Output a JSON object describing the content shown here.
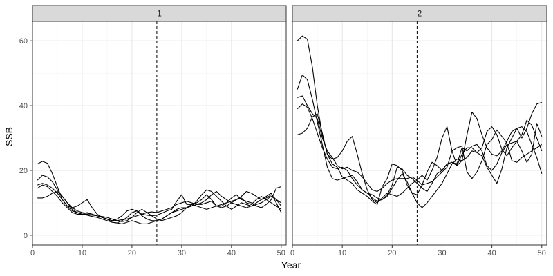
{
  "chart_data": {
    "type": "line",
    "facet_strip_labels": [
      "1",
      "2"
    ],
    "xlabel": "Year",
    "ylabel": "SSB",
    "xlim": [
      0,
      51
    ],
    "ylim": [
      -3,
      66
    ],
    "x_ticks": [
      0,
      10,
      20,
      30,
      40,
      50
    ],
    "y_ticks": [
      0,
      20,
      40,
      60
    ],
    "reference_line": {
      "x": 25,
      "style": "dashed"
    },
    "grid": true,
    "x": [
      1,
      2,
      3,
      4,
      5,
      6,
      7,
      8,
      9,
      10,
      11,
      12,
      13,
      14,
      15,
      16,
      17,
      18,
      19,
      20,
      21,
      22,
      23,
      24,
      25,
      26,
      27,
      28,
      29,
      30,
      31,
      32,
      33,
      34,
      35,
      36,
      37,
      38,
      39,
      40,
      41,
      42,
      43,
      44,
      45,
      46,
      47,
      48,
      49,
      50
    ],
    "panels": [
      {
        "panel": "1",
        "series": [
          {
            "values": [
              22,
              22.8,
              22.2,
              19,
              15,
              11,
              9,
              8.5,
              9,
              10,
              11,
              8.5,
              6.5,
              5.5,
              5,
              4.5,
              5,
              6,
              7.5,
              8,
              7.5,
              6.5,
              6.2,
              6,
              6.2,
              6.8,
              7.5,
              8,
              10.5,
              12.5,
              9.5,
              9.5,
              10,
              11,
              12.5,
              11,
              9,
              8.5,
              9,
              10,
              11,
              11.5,
              10,
              9.5,
              11,
              12,
              11,
              10,
              9,
              8
            ]
          },
          {
            "values": [
              17,
              18.5,
              18,
              16.5,
              14,
              12,
              10,
              8.5,
              7.5,
              7,
              6.8,
              6.5,
              6,
              5.5,
              5,
              4.5,
              4.5,
              4.8,
              5,
              5.5,
              6,
              6.5,
              7,
              7.2,
              7,
              7.5,
              8,
              8.5,
              9.5,
              10,
              10.5,
              10,
              9.5,
              9.5,
              10,
              10.5,
              9,
              9,
              10,
              11.5,
              12.5,
              11,
              10.5,
              10,
              9,
              8.5,
              9.5,
              11,
              14.5,
              15
            ]
          },
          {
            "values": [
              15.5,
              16,
              15.5,
              14.5,
              13,
              11,
              9,
              7.5,
              7,
              6.5,
              6.5,
              6.2,
              6,
              5.8,
              5.5,
              5,
              4.5,
              4.2,
              4.5,
              5.5,
              7,
              8,
              7,
              6,
              5,
              4.5,
              5,
              5.5,
              6,
              7,
              8.5,
              9.5,
              9,
              8.5,
              8,
              8.5,
              9,
              9.5,
              10,
              10.5,
              11,
              12,
              13.5,
              13,
              12,
              11,
              11.5,
              12.5,
              11,
              9
            ]
          },
          {
            "values": [
              14.5,
              15.5,
              15,
              13.5,
              12,
              10,
              8.5,
              7,
              6.5,
              6.5,
              7,
              6.5,
              6,
              5.5,
              5,
              4,
              3.8,
              4.5,
              5.5,
              7,
              7.5,
              6,
              5,
              4.5,
              4.5,
              5,
              6,
              7,
              8,
              8.5,
              8.5,
              9,
              9.5,
              10,
              11,
              12.5,
              13.5,
              12,
              11,
              10,
              9.5,
              9,
              8.5,
              9,
              10,
              11,
              12,
              13,
              10,
              7
            ]
          },
          {
            "values": [
              11.5,
              11.5,
              12,
              13,
              13.5,
              12,
              10,
              8,
              7,
              6.5,
              6.2,
              5.8,
              5.5,
              5,
              4.5,
              4,
              3.8,
              3.5,
              4,
              4.5,
              4,
              3.5,
              3.5,
              4,
              4.5,
              5,
              6,
              7,
              7.5,
              8,
              8.5,
              9,
              10.5,
              12.5,
              14,
              13.5,
              12,
              10.5,
              9,
              8,
              9,
              10,
              9.5,
              9,
              9.5,
              10,
              11,
              12,
              11,
              10
            ]
          }
        ]
      },
      {
        "panel": "2",
        "series": [
          {
            "values": [
              60,
              61.5,
              60.5,
              52,
              40,
              31,
              25,
              23.5,
              24,
              26,
              29,
              30.5,
              25,
              19,
              14,
              11,
              10,
              11.5,
              13,
              12.5,
              12,
              13,
              14.5,
              16,
              17,
              18.5,
              17,
              20,
              24,
              30,
              33.5,
              26,
              21.5,
              23,
              31,
              38,
              36,
              31,
              27,
              25,
              24.5,
              26,
              29,
              32,
              33,
              33.5,
              32,
              28,
              24,
              19
            ]
          },
          {
            "values": [
              45,
              49.5,
              48,
              42,
              35,
              28,
              21,
              17.5,
              17,
              17.5,
              18,
              18.5,
              16.5,
              14,
              13,
              11.5,
              10.5,
              11,
              12,
              14.5,
              17,
              19,
              16.5,
              13,
              10,
              8.5,
              10,
              12,
              14,
              16,
              19,
              22,
              23.5,
              23,
              24,
              26,
              25.5,
              27,
              32,
              33.5,
              31,
              26.5,
              24.5,
              27,
              29,
              31,
              35.5,
              34,
              30,
              26
            ]
          },
          {
            "values": [
              39,
              40.5,
              39.5,
              36,
              31.5,
              27,
              23.5,
              21,
              20.5,
              21,
              20,
              17.5,
              15.5,
              14,
              13,
              12.5,
              11.5,
              11,
              12.5,
              15.5,
              21,
              20.5,
              18.5,
              17.5,
              16,
              14.5,
              13.5,
              16,
              19,
              20,
              22,
              22.5,
              22,
              27,
              26,
              27.5,
              28,
              26,
              21.5,
              20,
              22,
              25.5,
              28,
              28.5,
              29,
              26,
              22.5,
              25,
              34.5,
              30.5
            ]
          },
          {
            "values": [
              42.5,
              43,
              40,
              37.5,
              36,
              30,
              26,
              24,
              21.5,
              20.5,
              21,
              20,
              19.5,
              18,
              16,
              14,
              13.5,
              14.5,
              16,
              17,
              17.5,
              17.5,
              17.5,
              18,
              17,
              15.5,
              19.5,
              22.5,
              21.5,
              20,
              22,
              22.5,
              21.5,
              25,
              27,
              27,
              25.5,
              24.5,
              21,
              18.5,
              16,
              20.5,
              27,
              30,
              33,
              30,
              33,
              37.5,
              40.5,
              41
            ]
          },
          {
            "values": [
              31,
              31.5,
              33,
              36.5,
              37.5,
              31.5,
              25,
              22,
              21,
              18,
              17,
              16,
              14,
              13,
              12,
              10.5,
              9.5,
              15,
              17.5,
              22,
              21.5,
              20,
              15.5,
              13,
              12.5,
              15.5,
              16,
              16.5,
              18,
              19.5,
              21,
              26,
              27,
              27.5,
              19.5,
              17.5,
              19.5,
              23,
              28,
              29.5,
              32.5,
              30.5,
              28.5,
              23,
              22.5,
              24,
              25,
              26,
              27,
              28
            ]
          }
        ]
      }
    ]
  }
}
